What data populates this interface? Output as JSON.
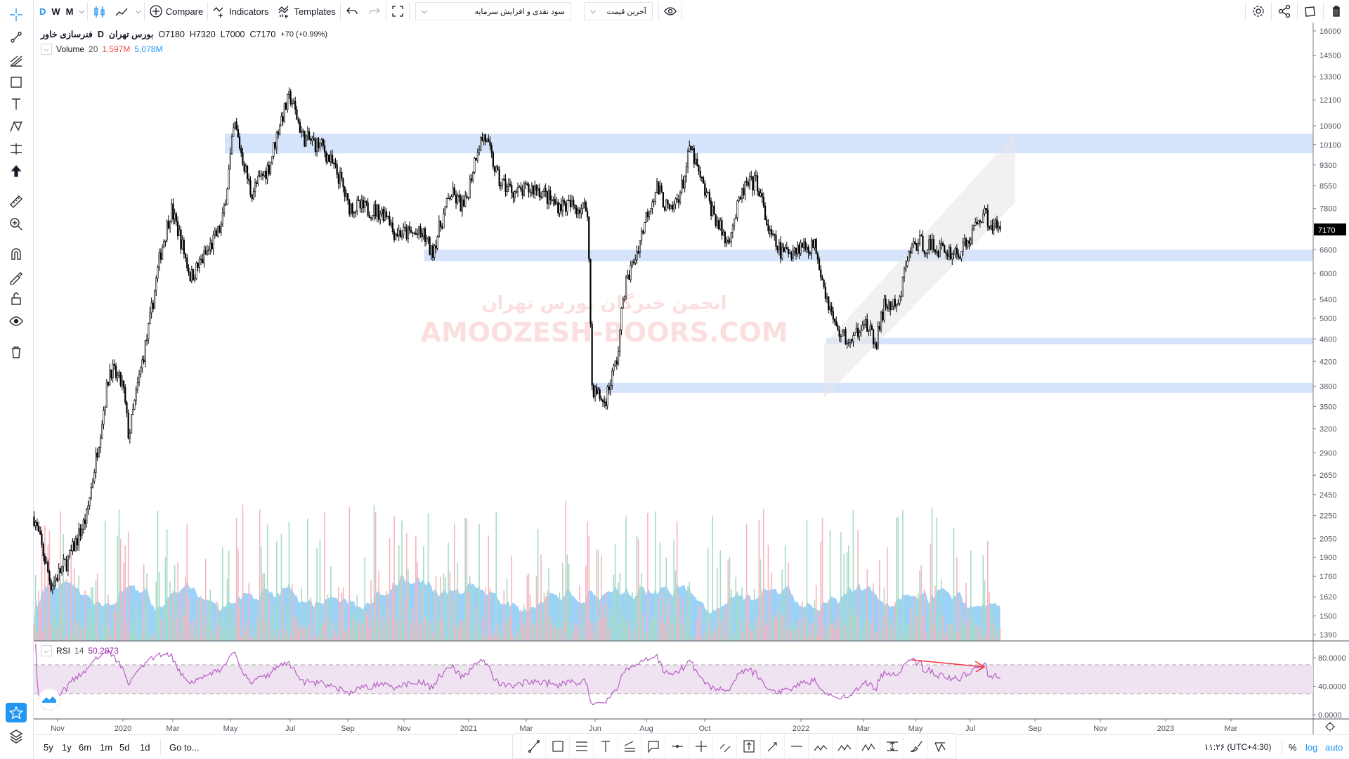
{
  "toolbar": {
    "intervals": [
      "D",
      "W",
      "M"
    ],
    "active_interval": "D",
    "compare_label": "Compare",
    "indicators_label": "Indicators",
    "templates_label": "Templates",
    "adjust_dropdown": "سود نقدی و افزایش سرمایه",
    "price_dropdown": "آخرین قیمت"
  },
  "legend": {
    "symbol": "فنرسازی خاور",
    "interval": "D",
    "exchange": "بورس تهران",
    "open": "O7180",
    "high": "H7320",
    "low": "L7000",
    "close": "C7170",
    "change": "+70 (+0.99%)"
  },
  "volume_legend": {
    "name": "Volume",
    "length": "20",
    "value": "1.597M",
    "ma": "5.078M"
  },
  "rsi_legend": {
    "name": "RSI",
    "length": "14",
    "value": "50.2073"
  },
  "watermark": {
    "line1": "انجمن خبرگان بورس تهران",
    "line2": "AMOOZESH-BOORS.COM"
  },
  "colors": {
    "accent": "#2196f3",
    "rsi": "#9c27b0",
    "zone": "#d5e4fa",
    "volume_up": "#a6dcc4",
    "volume_down": "#f7b5bd",
    "volume_ma": "#7cc3f5",
    "down_value": "#ef5350",
    "watermark": "#fbdede"
  },
  "chart_data": {
    "type": "candlestick",
    "price_axis": {
      "scale": "log",
      "ticks": [
        "16000",
        "14500",
        "13300",
        "12100",
        "10900",
        "10100",
        "9300",
        "8550",
        "7800",
        "6600",
        "6000",
        "5400",
        "5000",
        "4600",
        "4200",
        "3800",
        "3500",
        "3200",
        "2900",
        "2650",
        "2450",
        "2250",
        "2050",
        "1900",
        "1760",
        "1620",
        "1500",
        "1390"
      ],
      "last_price": "7170"
    },
    "rsi_axis": {
      "ticks": [
        "80.0000",
        "40.0000",
        "0.0000"
      ],
      "bands": [
        30,
        70
      ]
    },
    "time_axis": [
      "Nov",
      "2020",
      "Mar",
      "May",
      "Jul",
      "Sep",
      "Nov",
      "2021",
      "Mar",
      "Jun",
      "Aug",
      "Oct",
      "2022",
      "Mar",
      "May",
      "Jul",
      "Sep",
      "Nov",
      "2023",
      "Mar"
    ],
    "close_path": [
      [
        "2019-10-10",
        2240
      ],
      [
        "2019-10-26",
        1700
      ],
      [
        "2019-11-12",
        1900
      ],
      [
        "2019-11-28",
        2240
      ],
      [
        "2019-12-10",
        3100
      ],
      [
        "2019-12-20",
        4100
      ],
      [
        "2020-01-01",
        3800
      ],
      [
        "2020-01-08",
        3100
      ],
      [
        "2020-01-20",
        3900
      ],
      [
        "2020-02-01",
        4800
      ],
      [
        "2020-02-15",
        6500
      ],
      [
        "2020-02-28",
        7800
      ],
      [
        "2020-03-08",
        7000
      ],
      [
        "2020-03-20",
        5900
      ],
      [
        "2020-04-08",
        6600
      ],
      [
        "2020-04-22",
        7300
      ],
      [
        "2020-04-28",
        8700
      ],
      [
        "2020-05-05",
        11000
      ],
      [
        "2020-05-22",
        8300
      ],
      [
        "2020-06-10",
        9300
      ],
      [
        "2020-06-20",
        11000
      ],
      [
        "2020-07-01",
        12300
      ],
      [
        "2020-07-15",
        10400
      ],
      [
        "2020-08-05",
        10000
      ],
      [
        "2020-08-25",
        8700
      ],
      [
        "2020-09-01",
        7900
      ],
      [
        "2020-10-15",
        7650
      ],
      [
        "2020-10-20",
        7100
      ],
      [
        "2020-11-20",
        7000
      ],
      [
        "2020-11-27",
        6500
      ],
      [
        "2020-12-15",
        8300
      ],
      [
        "2020-12-28",
        7800
      ],
      [
        "2021-01-10",
        10000
      ],
      [
        "2021-01-17",
        10500
      ],
      [
        "2021-02-01",
        8700
      ],
      [
        "2021-02-20",
        8300
      ],
      [
        "2021-03-15",
        8500
      ],
      [
        "2021-04-08",
        7950
      ],
      [
        "2021-05-22",
        7800
      ],
      [
        "2021-05-28",
        3780
      ],
      [
        "2021-06-12",
        3550
      ],
      [
        "2021-06-28",
        4300
      ],
      [
        "2021-07-05",
        5600
      ],
      [
        "2021-07-20",
        6500
      ],
      [
        "2021-08-03",
        7800
      ],
      [
        "2021-08-12",
        8500
      ],
      [
        "2021-08-26",
        7600
      ],
      [
        "2021-09-08",
        8600
      ],
      [
        "2021-09-16",
        10000
      ],
      [
        "2021-09-27",
        8700
      ],
      [
        "2021-10-10",
        7600
      ],
      [
        "2021-10-22",
        6800
      ],
      [
        "2021-11-08",
        8500
      ],
      [
        "2021-11-20",
        8700
      ],
      [
        "2021-12-02",
        7000
      ],
      [
        "2021-12-14",
        6500
      ],
      [
        "2021-12-31",
        6700
      ],
      [
        "2022-01-15",
        6700
      ],
      [
        "2022-01-25",
        5480
      ],
      [
        "2022-02-03",
        4800
      ],
      [
        "2022-02-18",
        4500
      ],
      [
        "2022-02-28",
        5000
      ],
      [
        "2022-03-15",
        4500
      ],
      [
        "2022-03-26",
        5300
      ],
      [
        "2022-04-11",
        5200
      ],
      [
        "2022-04-21",
        6400
      ],
      [
        "2022-05-01",
        6800
      ],
      [
        "2022-05-16",
        6700
      ],
      [
        "2022-05-31",
        6600
      ],
      [
        "2022-06-18",
        6500
      ],
      [
        "2022-06-28",
        6800
      ],
      [
        "2022-07-13",
        7700
      ],
      [
        "2022-07-22",
        7300
      ],
      [
        "2022-07-30",
        7170
      ]
    ],
    "zones": [
      {
        "from": "2020-04-25",
        "top": 10550,
        "bottom": 9750
      },
      {
        "from": "2020-11-20",
        "top": 6600,
        "bottom": 6300
      },
      {
        "from": "2022-01-25",
        "top": 4620,
        "bottom": 4500
      },
      {
        "from": "2021-05-28",
        "top": 3850,
        "bottom": 3700
      }
    ]
  },
  "bottom": {
    "ranges": [
      "5y",
      "1y",
      "6m",
      "1m",
      "5d",
      "1d"
    ],
    "goto": "Go to...",
    "clock": "۱۱:۲۶ (UTC+4:30)",
    "percent": "%",
    "log": "log",
    "auto": "auto"
  }
}
